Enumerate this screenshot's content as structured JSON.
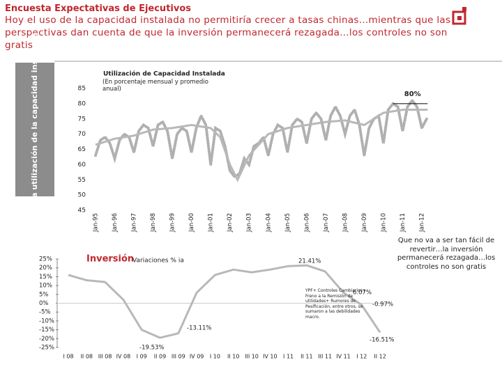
{
  "header": {
    "title": "Encuesta Expectativas de Ejecutivos",
    "subtitle": "Hoy el uso de la capacidad instalada no permitiría crecer a tasas chinas…mientras que las perspectivas dan cuenta de que la inversión permanecerá rezagada…los controles no son gratis"
  },
  "side_label": "Elevada utilización de la capacidad instalada",
  "chart_data": [
    {
      "type": "line",
      "title": "Utilización de Capacidad Instalada",
      "subtitle": "(En porcentaje mensual y promedio anual)",
      "ylim": [
        45,
        85
      ],
      "yticks": [
        45,
        50,
        55,
        60,
        65,
        70,
        75,
        80,
        85
      ],
      "xlim": [
        1995,
        2012
      ],
      "xticks": [
        {
          "value": 1995,
          "label": "Jan-95"
        },
        {
          "value": 1996,
          "label": "Jan-96"
        },
        {
          "value": 1997,
          "label": "Jan-97"
        },
        {
          "value": 1998,
          "label": "Jan-98"
        },
        {
          "value": 1999,
          "label": "Jan-99"
        },
        {
          "value": 2000,
          "label": "Jan-00"
        },
        {
          "value": 2001,
          "label": "Jan-01"
        },
        {
          "value": 2002,
          "label": "Jan-02"
        },
        {
          "value": 2003,
          "label": "Jan-03"
        },
        {
          "value": 2004,
          "label": "Jan-04"
        },
        {
          "value": 2005,
          "label": "Jan-05"
        },
        {
          "value": 2006,
          "label": "Jan-06"
        },
        {
          "value": 2007,
          "label": "Jan-07"
        },
        {
          "value": 2008,
          "label": "Jan-08"
        },
        {
          "value": 2009,
          "label": "Jan-09"
        },
        {
          "value": 2010,
          "label": "Jan-10"
        },
        {
          "value": 2011,
          "label": "Jan-11"
        },
        {
          "value": 2012,
          "label": "Jan-12"
        }
      ],
      "series": [
        {
          "color": "#b0b0b0",
          "style": "dotted",
          "x": [
            1995,
            1995.25,
            1995.5,
            1995.75,
            1996,
            1996.25,
            1996.5,
            1996.75,
            1997,
            1997.25,
            1997.5,
            1997.75,
            1998,
            1998.25,
            1998.5,
            1998.75,
            1999,
            1999.25,
            1999.5,
            1999.75,
            2000,
            2000.25,
            2000.5,
            2000.75,
            2001,
            2001.25,
            2001.5,
            2001.75,
            2002,
            2002.25,
            2002.5,
            2002.75,
            2003,
            2003.25,
            2003.5,
            2003.75,
            2004,
            2004.25,
            2004.5,
            2004.75,
            2005,
            2005.25,
            2005.5,
            2005.75,
            2006,
            2006.25,
            2006.5,
            2006.75,
            2007,
            2007.25,
            2007.5,
            2007.75,
            2008,
            2008.25,
            2008.5,
            2008.75,
            2009,
            2009.25,
            2009.5,
            2009.75,
            2010,
            2010.25,
            2010.5,
            2010.75,
            2011,
            2011.25,
            2011.5,
            2011.75,
            2012,
            2012.25
          ],
          "values": [
            63,
            68,
            69,
            67,
            62,
            68,
            70,
            69,
            64,
            71,
            73,
            72,
            66,
            73,
            74,
            71,
            62,
            70,
            72,
            71,
            64,
            72,
            76,
            73,
            60,
            72,
            71,
            66,
            58,
            56,
            57,
            62,
            60,
            66,
            67,
            69,
            63,
            70,
            73,
            72,
            64,
            73,
            75,
            74,
            67,
            75,
            77,
            75,
            68,
            76,
            79,
            76,
            70,
            76,
            78,
            73,
            63,
            72,
            75,
            76,
            67,
            78,
            80,
            79,
            71,
            79,
            81,
            79,
            72,
            75
          ]
        },
        {
          "color": "#b8b8b8",
          "style": "solid",
          "x": [
            1995,
            1996,
            1997,
            1998,
            1999,
            2000,
            2001,
            2001.5,
            2002,
            2002.4,
            2003,
            2004,
            2005,
            2006,
            2007,
            2008,
            2009,
            2009.5,
            2010,
            2011,
            2012.3
          ],
          "values": [
            66.5,
            68.5,
            69.5,
            71.5,
            72,
            73,
            72,
            69,
            60,
            55,
            63,
            70,
            72,
            73,
            74,
            74.5,
            73,
            75,
            77,
            78,
            78
          ]
        }
      ],
      "reference_line": {
        "value": 80,
        "label": "80%",
        "from": 2010.5,
        "to": 2012.3,
        "color": "#000000"
      }
    },
    {
      "type": "line",
      "title": "Inversión",
      "subtitle": "Variaciones % ia",
      "categories": [
        "I 08",
        "II 08",
        "III 08",
        "IV 08",
        "I 09",
        "II 09",
        "III 09",
        "IV 09",
        "I 10",
        "II 10",
        "III 10",
        "IV 10",
        "I 11",
        "II 11",
        "III 11",
        "IV 11",
        "I 12",
        "II 12"
      ],
      "ylim": [
        -25,
        25
      ],
      "yticks": [
        {
          "value": -25,
          "label": "-25%"
        },
        {
          "value": -20,
          "label": "-20%"
        },
        {
          "value": -15,
          "label": "-15%"
        },
        {
          "value": -10,
          "label": "-10%"
        },
        {
          "value": -5,
          "label": "-5%"
        },
        {
          "value": 0,
          "label": "0%"
        },
        {
          "value": 5,
          "label": "5%"
        },
        {
          "value": 10,
          "label": "10%"
        },
        {
          "value": 15,
          "label": "15%"
        },
        {
          "value": 20,
          "label": "20%"
        },
        {
          "value": 25,
          "label": "25%"
        }
      ],
      "series": [
        {
          "color": "#b8b8b8",
          "values": [
            16,
            13,
            12,
            2,
            -15,
            -19.53,
            -17,
            6,
            16,
            19,
            17.5,
            19,
            21,
            21.41,
            18,
            6.07,
            -0.97,
            -16.51
          ]
        }
      ],
      "annotations": [
        "21.41%",
        "6.07%",
        "-0.97%",
        "-13.11%",
        "-19.53%",
        "-16.51%"
      ],
      "note": "YPF+ Controles Cambiarios+ Freno a la Remisión de utilidades+ Rumores de Pesificación, entre otros, se sumaron a las debilidades macro."
    }
  ],
  "conclusion": "Que no va a ser tan fácil de revertir…la inversión permanecerá rezagada…los controles no son gratis"
}
